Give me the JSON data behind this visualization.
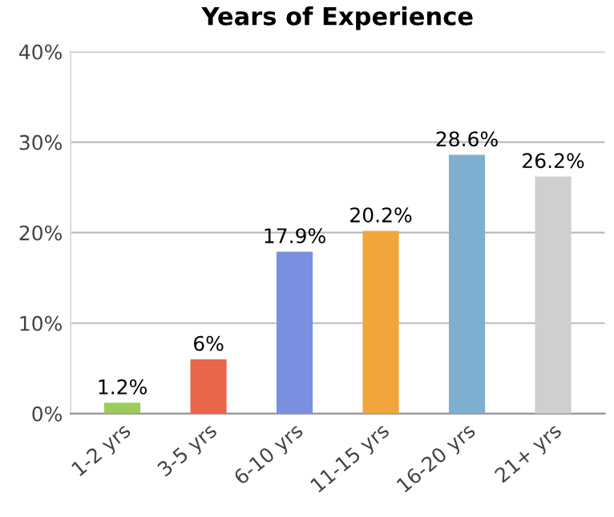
{
  "chart_data": {
    "type": "bar",
    "title": "Years of Experience",
    "categories": [
      "1-2 yrs",
      "3-5 yrs",
      "6-10 yrs",
      "11-15 yrs",
      "16-20 yrs",
      "21+ yrs"
    ],
    "values": [
      1.2,
      6,
      17.9,
      20.2,
      28.6,
      26.2
    ],
    "value_labels": [
      "1.2%",
      "6%",
      "17.9%",
      "20.2%",
      "28.6%",
      "26.2%"
    ],
    "colors": [
      "#9ccc5a",
      "#e8664a",
      "#7b8fe0",
      "#f2a53a",
      "#7eaed0",
      "#cfcfcf"
    ],
    "ylim": [
      0,
      40
    ],
    "yticks": [
      {
        "value": 0,
        "label": "0%"
      },
      {
        "value": 10,
        "label": "10%"
      },
      {
        "value": 20,
        "label": "20%"
      },
      {
        "value": 30,
        "label": "30%"
      },
      {
        "value": 40,
        "label": "40%"
      }
    ],
    "grid": "y"
  }
}
